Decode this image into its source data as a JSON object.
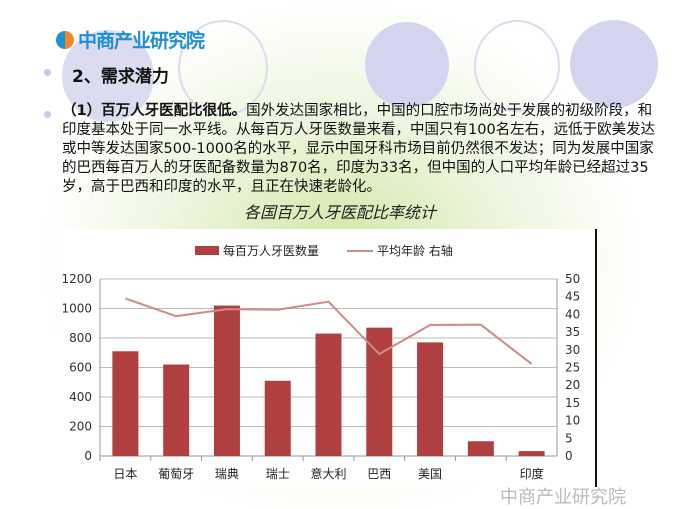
{
  "logo": {
    "text": "中商产业研究院"
  },
  "heading": "2、需求潜力",
  "paragraph": {
    "bold": "（1）百万人牙医配比很低。",
    "text": "国外发达国家相比，中国的口腔市场尚处于发展的初级阶段，和印度基本处于同一水平线。从每百万人牙医数量来看，中国只有100名左右，远低于欧美发达或中等发达国家500-1000名的水平，显示中国牙科市场目前仍然很不发达；同为发展中国家的巴西每百万人的牙医配备数量为870名，印度为33名，但中国的人口平均年龄已经超过35岁，高于巴西和印度的水平，且正在快速老龄化。"
  },
  "watermark": "中商产业研究院",
  "chart_data": {
    "type": "bar",
    "title": "各国百万人牙医配比率统计",
    "categories": [
      "日本",
      "葡萄牙",
      "瑞典",
      "瑞士",
      "意大利",
      "巴西",
      "美国",
      "",
      "印度"
    ],
    "series": [
      {
        "name": "每百万人牙医数量",
        "type": "bar",
        "axis": "left",
        "color": "#b04040",
        "values": [
          710,
          620,
          1020,
          510,
          830,
          870,
          770,
          100,
          33
        ]
      },
      {
        "name": "平均年龄 右轴",
        "type": "line",
        "axis": "right",
        "color": "#d08a8a",
        "values": [
          44.5,
          39.5,
          41.5,
          41.3,
          43.6,
          28.8,
          37.0,
          37.1,
          26.0
        ]
      }
    ],
    "ylim": [
      0,
      1200
    ],
    "yticks": [
      0,
      200,
      400,
      600,
      800,
      1000,
      1200
    ],
    "y2lim": [
      0,
      50
    ],
    "y2ticks": [
      0,
      5,
      10,
      15,
      20,
      25,
      30,
      35,
      40,
      45,
      50
    ],
    "grid": true,
    "legend": "top"
  }
}
